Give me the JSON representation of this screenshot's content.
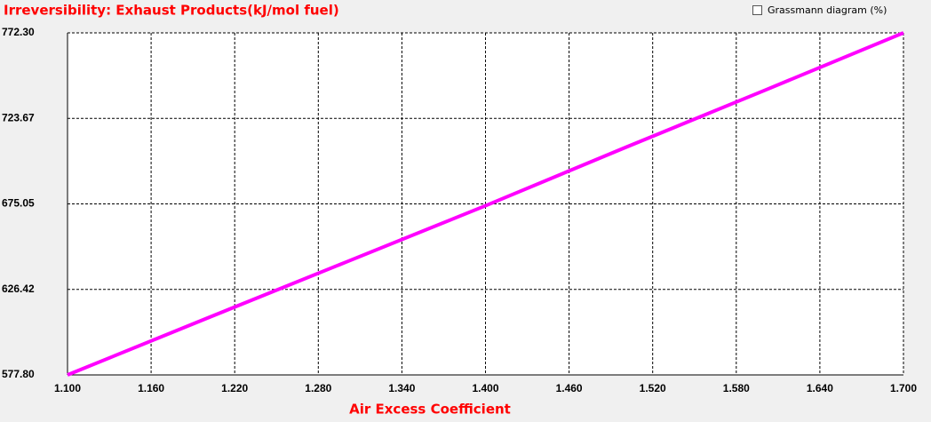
{
  "chart_data": {
    "type": "line",
    "title": "Irreversibility: Exhaust Products(kJ/mol fuel)",
    "x_label": "Air Excess Coefficient",
    "checkbox_label": "Grassmann diagram (%)",
    "x": [
      1.1,
      1.2,
      1.3,
      1.4,
      1.5,
      1.6,
      1.7
    ],
    "series": [
      {
        "color": "#ff00ff",
        "values": [
          577.8,
          610,
          642,
          674,
          707,
          739.5,
          772.3
        ]
      }
    ],
    "xlim": [
      1.1,
      1.7
    ],
    "xticks": [
      {
        "value": 1.1,
        "label": "1.100"
      },
      {
        "value": 1.16,
        "label": "1.160"
      },
      {
        "value": 1.22,
        "label": "1.220"
      },
      {
        "value": 1.28,
        "label": "1.280"
      },
      {
        "value": 1.34,
        "label": "1.340"
      },
      {
        "value": 1.4,
        "label": "1.400"
      },
      {
        "value": 1.46,
        "label": "1.460"
      },
      {
        "value": 1.52,
        "label": "1.520"
      },
      {
        "value": 1.58,
        "label": "1.580"
      },
      {
        "value": 1.64,
        "label": "1.640"
      },
      {
        "value": 1.7,
        "label": "1.700"
      }
    ],
    "ylim": [
      577.8,
      772.3
    ],
    "yticks": [
      {
        "value": 577.8,
        "label": "577.80"
      },
      {
        "value": 626.42,
        "label": "626.42"
      },
      {
        "value": 675.05,
        "label": "675.05"
      },
      {
        "value": 723.67,
        "label": "723.67"
      },
      {
        "value": 772.3,
        "label": "772.30"
      }
    ],
    "grid": true
  }
}
